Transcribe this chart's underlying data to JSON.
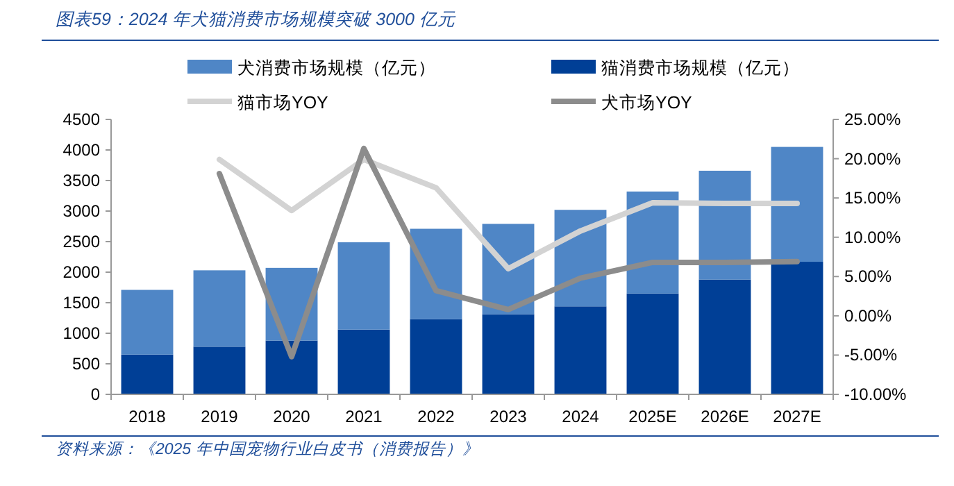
{
  "chart_data": {
    "type": "bar",
    "title": "图表59：2024 年犬猫消费市场规模突破 3000 亿元",
    "stacked": true,
    "legend": "top",
    "marker": "none",
    "line_style": "solid",
    "grid": false,
    "categories": [
      "2018",
      "2019",
      "2020",
      "2021",
      "2022",
      "2023",
      "2024",
      "2025E",
      "2026E",
      "2027E"
    ],
    "series": [
      {
        "name": "猫消费市场规模（亿元）",
        "color": "#003f96",
        "values": [
          650,
          780,
          880,
          1060,
          1230,
          1310,
          1440,
          1650,
          1880,
          2170
        ]
      },
      {
        "name": "犬消费市场规模（亿元）",
        "color": "#4f86c6",
        "values": [
          1060,
          1250,
          1190,
          1430,
          1480,
          1480,
          1580,
          1670,
          1780,
          1880
        ]
      },
      {
        "name": "猫市场YOY",
        "type": "line",
        "axis": "y2",
        "color": "#d3d3d3",
        "values": [
          null,
          19.9,
          13.4,
          19.9,
          16.3,
          6.0,
          10.8,
          14.4,
          14.3,
          14.3
        ]
      },
      {
        "name": "犬市场YOY",
        "type": "line",
        "axis": "y2",
        "color": "#8c8c8c",
        "values": [
          null,
          18.1,
          -5.2,
          21.3,
          3.2,
          0.8,
          4.8,
          6.8,
          6.8,
          6.9
        ]
      }
    ],
    "ylim": [
      0,
      4500
    ],
    "yticks": [
      0,
      500,
      1000,
      1500,
      2000,
      2500,
      3000,
      3500,
      4000,
      4500
    ],
    "y2lim": [
      -10,
      25
    ],
    "y2ticks": [
      {
        "value": -10,
        "label": "-10.00%"
      },
      {
        "value": -5,
        "label": "-5.00%"
      },
      {
        "value": 0,
        "label": "0.00%"
      },
      {
        "value": 5,
        "label": "5.00%"
      },
      {
        "value": 10,
        "label": "10.00%"
      },
      {
        "value": 15,
        "label": "15.00%"
      },
      {
        "value": 20,
        "label": "20.00%"
      },
      {
        "value": 25,
        "label": "25.00%"
      }
    ],
    "annotations": [
      "资料来源：《2025 年中国宠物行业白皮书（消费报告）》"
    ]
  }
}
